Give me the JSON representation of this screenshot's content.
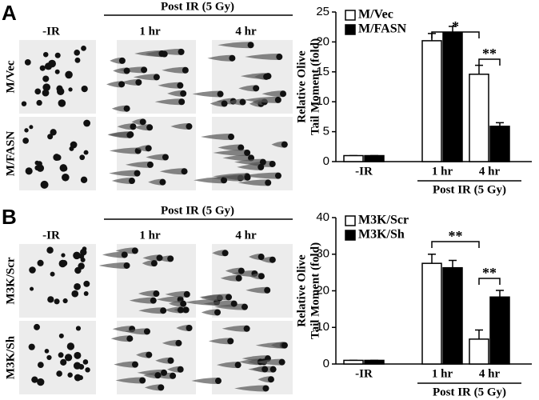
{
  "panels": [
    {
      "label": "A",
      "header": "Post IR (5 Gy)",
      "columns": [
        "-IR",
        "1 hr",
        "4 hr"
      ],
      "rows": [
        "M/Vec",
        "M/FASN"
      ]
    },
    {
      "label": "B",
      "header": "Post IR (5 Gy)",
      "columns": [
        "-IR",
        "1 hr",
        "4 hr"
      ],
      "rows": [
        "M3K/Scr",
        "M3K/Sh"
      ]
    }
  ],
  "chart_data": [
    {
      "type": "bar",
      "ylabel": [
        "Relative Olive",
        "Tail Moment (fold)"
      ],
      "categories": [
        "-IR",
        "1 hr",
        "4 hr"
      ],
      "group_label": "Post IR (5 Gy)",
      "ylim": [
        0,
        25
      ],
      "yticks": [
        0,
        5,
        10,
        15,
        20,
        25
      ],
      "series": [
        {
          "name": "M/Vec",
          "color": "#ffffff",
          "values": [
            1,
            20.2,
            14.6
          ],
          "errors": [
            0,
            1.2,
            1.5
          ]
        },
        {
          "name": "M/FASN",
          "color": "#000000",
          "values": [
            1,
            21.5,
            5.9
          ],
          "errors": [
            0,
            1.1,
            0.6
          ]
        }
      ],
      "annotations": [
        "*",
        "**"
      ]
    },
    {
      "type": "bar",
      "ylabel": [
        "Relative Olive",
        "Tail Moment (fold)"
      ],
      "categories": [
        "-IR",
        "1 hr",
        "4 hr"
      ],
      "group_label": "Post IR (5 Gy)",
      "ylim": [
        0,
        40
      ],
      "yticks": [
        0,
        10,
        20,
        30,
        40
      ],
      "series": [
        {
          "name": "M3K/Scr",
          "color": "#ffffff",
          "values": [
            1,
            27.5,
            6.8
          ],
          "errors": [
            0,
            2.5,
            2.5
          ]
        },
        {
          "name": "M3K/Sh",
          "color": "#000000",
          "values": [
            1,
            26.3,
            18.3
          ],
          "errors": [
            0,
            2.0,
            1.8
          ]
        }
      ],
      "annotations": [
        "**",
        "**"
      ]
    }
  ]
}
